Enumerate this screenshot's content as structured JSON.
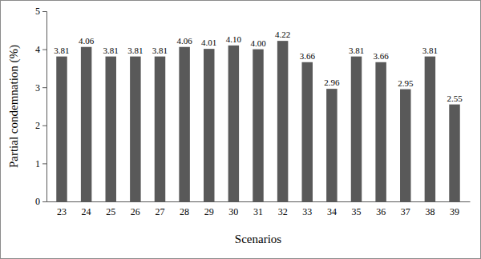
{
  "chart_data": {
    "type": "bar",
    "x_label": "Scenarios",
    "y_label": "Partial condemnation (%)",
    "categories": [
      "23",
      "24",
      "25",
      "26",
      "27",
      "28",
      "29",
      "30",
      "31",
      "32",
      "33",
      "34",
      "35",
      "36",
      "37",
      "38",
      "39"
    ],
    "values": [
      3.81,
      4.06,
      3.81,
      3.81,
      3.81,
      4.06,
      4.01,
      4.1,
      4.0,
      4.22,
      3.66,
      2.96,
      3.81,
      3.66,
      2.95,
      3.81,
      2.55
    ],
    "value_labels": [
      "3.81",
      "4.06",
      "3.81",
      "3.81",
      "3.81",
      "4.06",
      "4.01",
      "4.10",
      "4.00",
      "4.22",
      "3.66",
      "2.96",
      "3.81",
      "3.66",
      "2.95",
      "3.81",
      "2.55"
    ],
    "color": "#595959",
    "ylim": [
      0,
      5
    ],
    "yticks": [
      0,
      1,
      2,
      3,
      4,
      5
    ],
    "grid": false,
    "data_labels": true
  }
}
